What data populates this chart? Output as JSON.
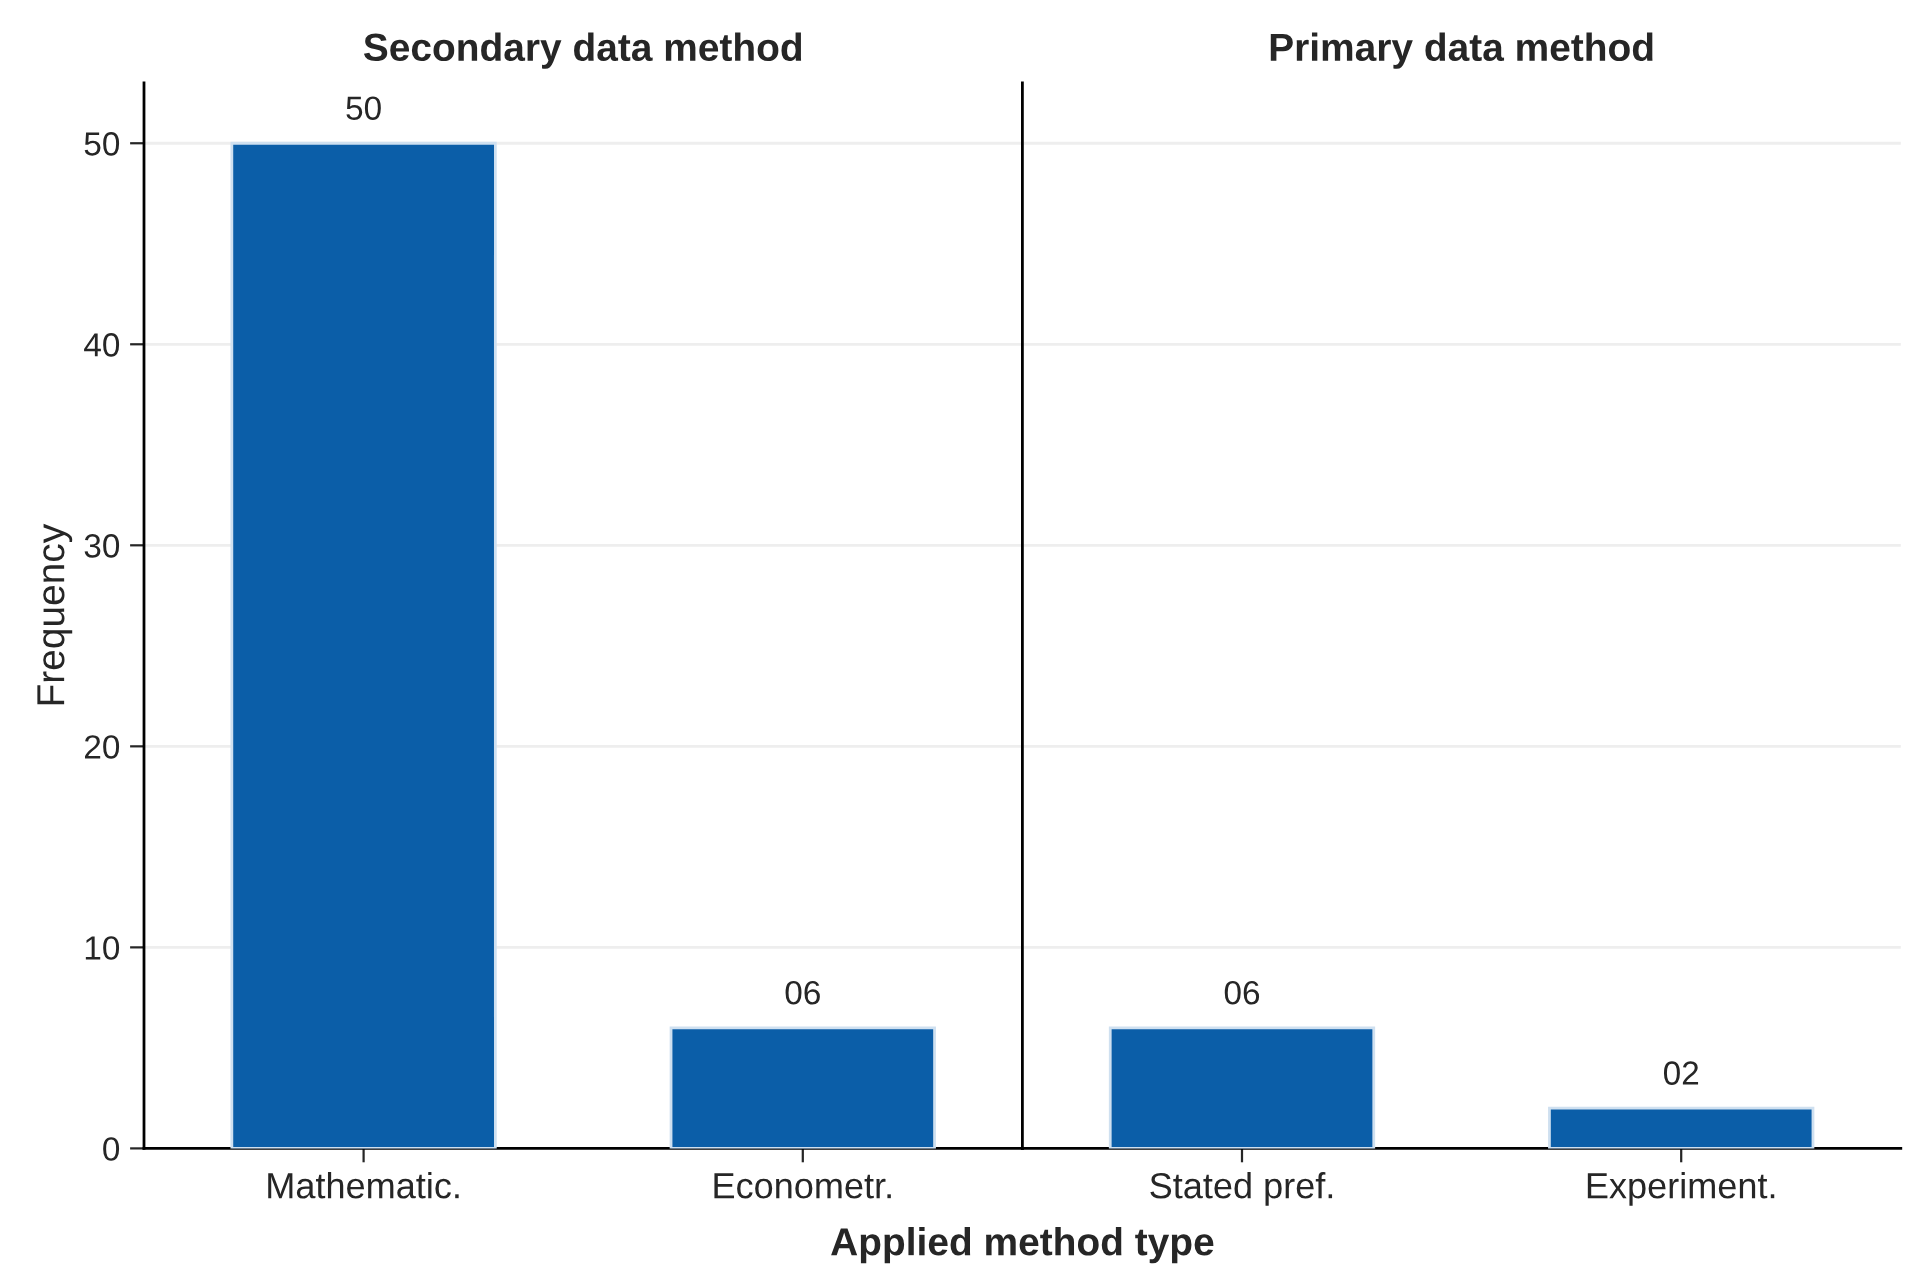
{
  "chart_data": [
    {
      "type": "bar",
      "title": "Secondary data method",
      "ylabel": "Frequency",
      "xlabel": "Applied method type",
      "categories": [
        "Mathematic.",
        "Econometr."
      ],
      "values": [
        50,
        6
      ],
      "value_labels": [
        "50",
        "06"
      ],
      "color": "#0b5ea8",
      "ylim": [
        0,
        53
      ],
      "yticks": [
        0,
        10,
        20,
        30,
        40,
        50
      ],
      "grid": "y"
    },
    {
      "type": "bar",
      "title": "Primary data method",
      "categories": [
        "Stated pref.",
        "Experiment."
      ],
      "values": [
        6,
        2
      ],
      "value_labels": [
        "06",
        "02"
      ],
      "color": "#0b5ea8",
      "ylim": [
        0,
        53
      ],
      "yticks": [
        0,
        10,
        20,
        30,
        40,
        50
      ],
      "grid": "y",
      "tick_labels": "x"
    }
  ]
}
